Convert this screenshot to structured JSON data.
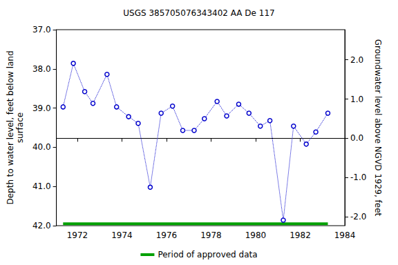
{
  "chart_data": {
    "type": "line",
    "title": "USGS 385705076343402 AA De 117",
    "ylabel": "Depth to water level, feet below land\nsurface",
    "y2label": "Groundwater level above NGVD 1929, feet",
    "xlim": [
      1971.06,
      1984
    ],
    "xticks": [
      1972,
      1974,
      1976,
      1978,
      1980,
      1982,
      1984
    ],
    "ylim": [
      42,
      37
    ],
    "yticks": [
      {
        "value": 37,
        "label": "37.0"
      },
      {
        "value": 38,
        "label": "38.0"
      },
      {
        "value": 39,
        "label": "39.0"
      },
      {
        "value": 40,
        "label": "40.0"
      },
      {
        "value": 41,
        "label": "41.0"
      },
      {
        "value": 42,
        "label": "42.0"
      }
    ],
    "y2lim": [
      -2.23,
      2.77
    ],
    "y2ticks": [
      {
        "value": -2,
        "label": "-2.0"
      },
      {
        "value": -1,
        "label": "-1.0"
      },
      {
        "value": 0,
        "label": "0.0"
      },
      {
        "value": 1,
        "label": "1.0"
      },
      {
        "value": 2,
        "label": "2.0"
      }
    ],
    "grid": false,
    "legend": "bottom",
    "series": [
      {
        "color": "#0000cc",
        "marker": "circle",
        "line_style": "dotted",
        "x": [
          1971.36,
          1971.82,
          1972.33,
          1972.7,
          1973.33,
          1973.76,
          1974.3,
          1974.73,
          1975.27,
          1975.76,
          1976.27,
          1976.73,
          1977.24,
          1977.7,
          1978.27,
          1978.7,
          1979.24,
          1979.7,
          1980.21,
          1980.64,
          1981.24,
          1981.7,
          1982.27,
          1982.7,
          1983.24
        ],
        "values": [
          38.97,
          37.86,
          38.58,
          38.88,
          38.14,
          38.97,
          39.22,
          39.39,
          41.02,
          39.13,
          38.95,
          39.57,
          39.57,
          39.27,
          38.83,
          39.2,
          38.9,
          39.13,
          39.46,
          39.32,
          41.86,
          39.46,
          39.92,
          39.61,
          39.13
        ]
      },
      {
        "name": "Period of approved data",
        "color": "#00a000",
        "marker": "none",
        "line_style": "solid",
        "x": [
          1971.36,
          1983.24
        ],
        "values": [
          41.95,
          41.95
        ]
      }
    ]
  }
}
